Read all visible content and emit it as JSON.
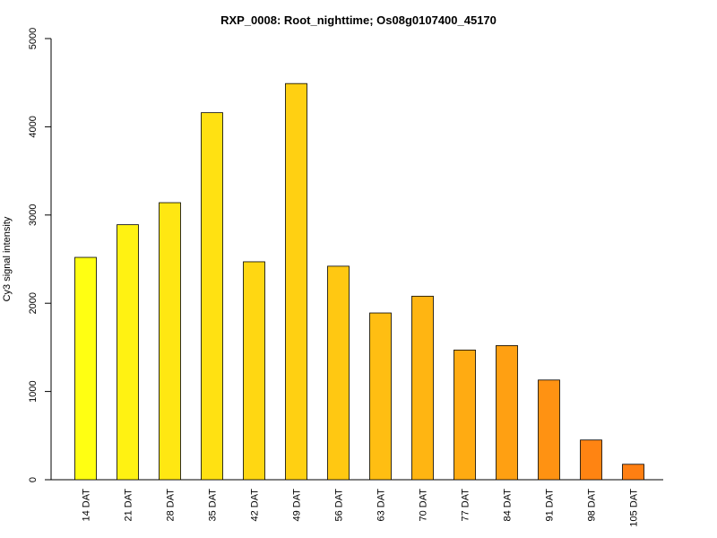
{
  "chart_data": {
    "type": "bar",
    "title": "RXP_0008: Root_nighttime; Os08g0107400_45170",
    "xlabel": "",
    "ylabel": "Cy3 signal intensity",
    "ylim": [
      0,
      5000
    ],
    "yticks": [
      0,
      1000,
      2000,
      3000,
      4000,
      5000
    ],
    "grid": false,
    "categories": [
      "14 DAT",
      "21 DAT",
      "28 DAT",
      "35 DAT",
      "42 DAT",
      "49 DAT",
      "56 DAT",
      "63 DAT",
      "70 DAT",
      "77 DAT",
      "84 DAT",
      "91 DAT",
      "98 DAT",
      "105 DAT"
    ],
    "values": [
      2520,
      2890,
      3140,
      4160,
      2470,
      4490,
      2420,
      1890,
      2080,
      1470,
      1520,
      1130,
      450,
      175
    ],
    "colors": [
      "#ffff12",
      "#fff212",
      "#ffe712",
      "#ffe112",
      "#ffd712",
      "#ffd012",
      "#ffc812",
      "#ffbe12",
      "#ffb512",
      "#ffab12",
      "#ffa012",
      "#ff9212",
      "#ff8412",
      "#ff7f12"
    ]
  }
}
